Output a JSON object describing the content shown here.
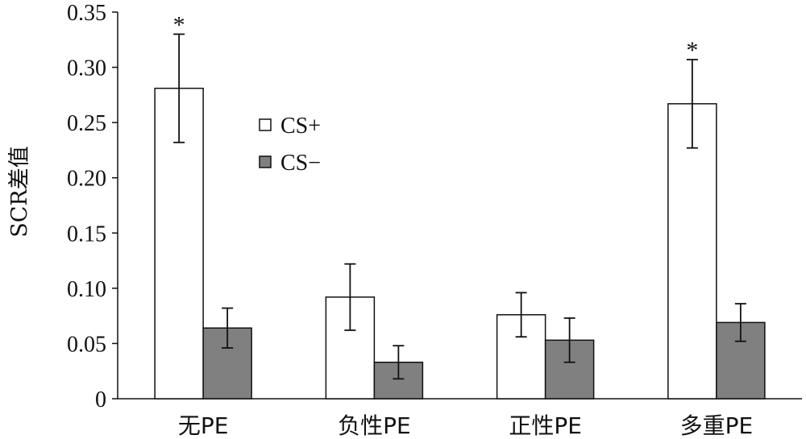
{
  "chart_data": {
    "type": "bar",
    "ylabel": "SCR差值",
    "xlabel": "",
    "title": "",
    "ylim": [
      0,
      0.35
    ],
    "yticks": [
      0,
      0.05,
      0.1,
      0.15,
      0.2,
      0.25,
      0.3,
      0.35
    ],
    "ytick_labels": [
      "0",
      "0.05",
      "0.10",
      "0.15",
      "0.20",
      "0.25",
      "0.30",
      "0.35"
    ],
    "categories": [
      "无PE",
      "负性PE",
      "正性PE",
      "多重PE"
    ],
    "series": [
      {
        "name": "CS+",
        "values": [
          0.281,
          0.092,
          0.076,
          0.267
        ],
        "error": [
          0.049,
          0.03,
          0.02,
          0.04
        ],
        "color": "#ffffff"
      },
      {
        "name": "CS−",
        "values": [
          0.064,
          0.033,
          0.053,
          0.069
        ],
        "error": [
          0.018,
          0.015,
          0.02,
          0.017
        ],
        "color": "#808080"
      }
    ],
    "annotations": [
      {
        "category": "无PE",
        "series": "CS+",
        "text": "*"
      },
      {
        "category": "多重PE",
        "series": "CS+",
        "text": "*"
      }
    ],
    "legend": {
      "placement": "inside-upper-center",
      "entries": [
        "CS+",
        "CS−"
      ]
    },
    "grid": false
  }
}
